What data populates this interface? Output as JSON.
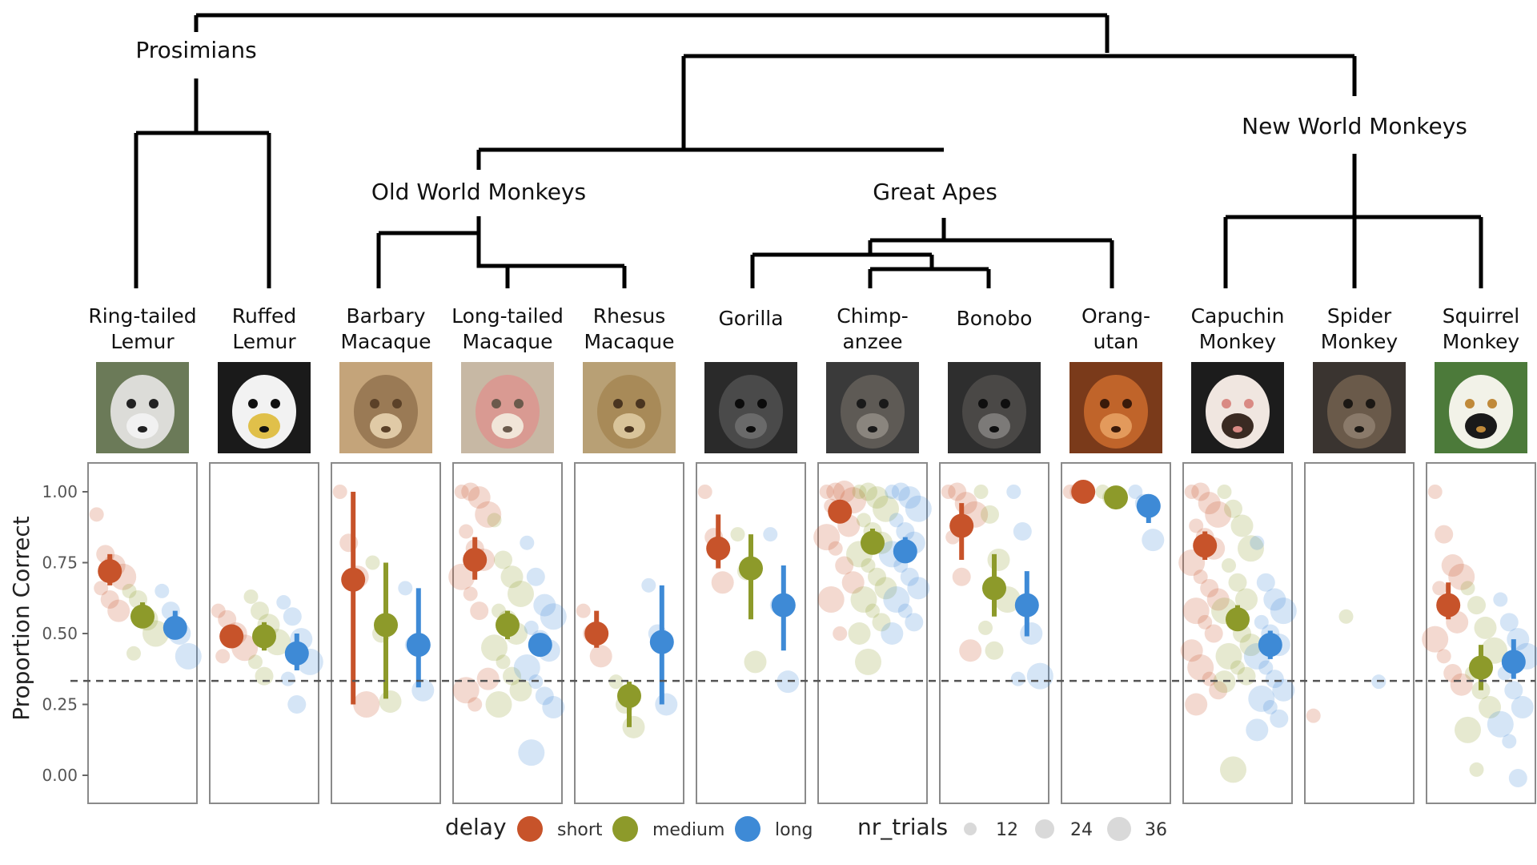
{
  "colors": {
    "short": "#c7532a",
    "medium": "#8d9a2a",
    "long": "#3e8ad6",
    "tree": "#000000"
  },
  "tree": {
    "clades": [
      {
        "id": "prosimians",
        "label": "Prosimians"
      },
      {
        "id": "old_world",
        "label": "Old World Monkeys"
      },
      {
        "id": "great_apes",
        "label": "Great Apes"
      },
      {
        "id": "new_world",
        "label": "New World Monkeys"
      }
    ]
  },
  "species": [
    {
      "id": "ringtailed",
      "lines": [
        "Ring-tailed",
        "Lemur"
      ],
      "photo_icon": "ring-tailed-lemur-photo"
    },
    {
      "id": "ruffed",
      "lines": [
        "Ruffed",
        "Lemur"
      ],
      "photo_icon": "ruffed-lemur-photo"
    },
    {
      "id": "barbary",
      "lines": [
        "Barbary",
        "Macaque"
      ],
      "photo_icon": "barbary-macaque-photo"
    },
    {
      "id": "longtailed",
      "lines": [
        "Long-tailed",
        "Macaque"
      ],
      "photo_icon": "long-tailed-macaque-photo"
    },
    {
      "id": "rhesus",
      "lines": [
        "Rhesus",
        "Macaque"
      ],
      "photo_icon": "rhesus-macaque-photo"
    },
    {
      "id": "gorilla",
      "lines": [
        "Gorilla"
      ],
      "photo_icon": "gorilla-photo"
    },
    {
      "id": "chimp",
      "lines": [
        "Chimp-",
        "anzee"
      ],
      "photo_icon": "chimpanzee-photo"
    },
    {
      "id": "bonobo",
      "lines": [
        "Bonobo"
      ],
      "photo_icon": "bonobo-photo"
    },
    {
      "id": "orangutan",
      "lines": [
        "Orang-",
        "utan"
      ],
      "photo_icon": "orangutan-photo"
    },
    {
      "id": "capuchin",
      "lines": [
        "Capuchin",
        "Monkey"
      ],
      "photo_icon": "capuchin-monkey-photo"
    },
    {
      "id": "spider",
      "lines": [
        "Spider",
        "Monkey"
      ],
      "photo_icon": "spider-monkey-photo"
    },
    {
      "id": "squirrel",
      "lines": [
        "Squirrel",
        "Monkey"
      ],
      "photo_icon": "squirrel-monkey-photo"
    }
  ],
  "chart_data": {
    "type": "scatter",
    "ylabel": "Proportion Correct",
    "ylim": [
      0,
      1
    ],
    "yticks": [
      "0.00",
      "0.25",
      "0.50",
      "0.75",
      "1.00"
    ],
    "chance_level": 0.333,
    "legend": {
      "placement": "bottom",
      "delay_title": "delay",
      "delay_items": [
        {
          "key": "short",
          "label": "short"
        },
        {
          "key": "medium",
          "label": "medium"
        },
        {
          "key": "long",
          "label": "long"
        }
      ],
      "size_title": "nr_trials",
      "size_items": [
        12,
        24,
        36
      ]
    },
    "panels": [
      {
        "species": "ringtailed",
        "summary": {
          "short": {
            "mean": 0.72,
            "lo": 0.67,
            "hi": 0.78
          },
          "medium": {
            "mean": 0.56,
            "lo": 0.52,
            "hi": 0.61
          },
          "long": {
            "mean": 0.52,
            "lo": 0.48,
            "hi": 0.58
          }
        },
        "points": {
          "short": [
            0.92,
            0.78,
            0.74,
            0.7,
            0.66,
            0.62,
            0.58
          ],
          "medium": [
            0.65,
            0.62,
            0.55,
            0.5,
            0.43
          ],
          "long": [
            0.65,
            0.58,
            0.5,
            0.42
          ]
        }
      },
      {
        "species": "ruffed",
        "summary": {
          "short": {
            "mean": 0.49,
            "lo": 0.46,
            "hi": 0.53
          },
          "medium": {
            "mean": 0.49,
            "lo": 0.44,
            "hi": 0.54
          },
          "long": {
            "mean": 0.43,
            "lo": 0.37,
            "hi": 0.5
          }
        },
        "points": {
          "short": [
            0.58,
            0.55,
            0.5,
            0.45,
            0.42
          ],
          "medium": [
            0.63,
            0.58,
            0.53,
            0.47,
            0.4,
            0.35
          ],
          "long": [
            0.61,
            0.56,
            0.48,
            0.4,
            0.34,
            0.25
          ]
        }
      },
      {
        "species": "barbary",
        "summary": {
          "short": {
            "mean": 0.69,
            "lo": 0.25,
            "hi": 1.0
          },
          "medium": {
            "mean": 0.53,
            "lo": 0.27,
            "hi": 0.75
          },
          "long": {
            "mean": 0.46,
            "lo": 0.31,
            "hi": 0.66
          }
        },
        "points": {
          "short": [
            1.0,
            0.82,
            0.7,
            0.25
          ],
          "medium": [
            0.75,
            0.5,
            0.26
          ],
          "long": [
            0.66,
            0.46,
            0.3
          ]
        }
      },
      {
        "species": "longtailed",
        "summary": {
          "short": {
            "mean": 0.76,
            "lo": 0.69,
            "hi": 0.84
          },
          "medium": {
            "mean": 0.53,
            "lo": 0.48,
            "hi": 0.58
          },
          "long": {
            "mean": 0.46,
            "lo": 0.42,
            "hi": 0.5
          }
        },
        "points": {
          "short": [
            1.0,
            1.0,
            0.98,
            0.92,
            0.86,
            0.8,
            0.76,
            0.7,
            0.64,
            0.58,
            0.34,
            0.3,
            0.25
          ],
          "medium": [
            0.9,
            0.76,
            0.7,
            0.64,
            0.58,
            0.55,
            0.5,
            0.45,
            0.4,
            0.35,
            0.3,
            0.25
          ],
          "long": [
            0.82,
            0.7,
            0.6,
            0.56,
            0.52,
            0.48,
            0.44,
            0.38,
            0.33,
            0.28,
            0.24,
            0.08
          ]
        }
      },
      {
        "species": "rhesus",
        "summary": {
          "short": {
            "mean": 0.5,
            "lo": 0.45,
            "hi": 0.58
          },
          "medium": {
            "mean": 0.28,
            "lo": 0.17,
            "hi": 0.33
          },
          "long": {
            "mean": 0.47,
            "lo": 0.25,
            "hi": 0.67
          }
        },
        "points": {
          "short": [
            0.58,
            0.5,
            0.42
          ],
          "medium": [
            0.33,
            0.25,
            0.17
          ],
          "long": [
            0.67,
            0.5,
            0.25
          ]
        }
      },
      {
        "species": "gorilla",
        "summary": {
          "short": {
            "mean": 0.8,
            "lo": 0.73,
            "hi": 0.92
          },
          "medium": {
            "mean": 0.73,
            "lo": 0.55,
            "hi": 0.85
          },
          "long": {
            "mean": 0.6,
            "lo": 0.44,
            "hi": 0.74
          }
        },
        "points": {
          "short": [
            1.0,
            0.84,
            0.68
          ],
          "medium": [
            0.85,
            0.72,
            0.4
          ],
          "long": [
            0.85,
            0.6,
            0.33
          ]
        }
      },
      {
        "species": "chimp",
        "summary": {
          "short": {
            "mean": 0.93,
            "lo": 0.9,
            "hi": 0.97
          },
          "medium": {
            "mean": 0.82,
            "lo": 0.78,
            "hi": 0.87
          },
          "long": {
            "mean": 0.79,
            "lo": 0.75,
            "hi": 0.84
          }
        },
        "points": {
          "short": [
            1.0,
            1.0,
            1.0,
            0.97,
            0.95,
            0.92,
            0.88,
            0.84,
            0.8,
            0.74,
            0.68,
            0.62,
            0.5
          ],
          "medium": [
            1.0,
            1.0,
            0.98,
            0.94,
            0.9,
            0.86,
            0.82,
            0.78,
            0.74,
            0.7,
            0.66,
            0.62,
            0.58,
            0.54,
            0.5,
            0.4
          ],
          "long": [
            1.0,
            1.0,
            0.98,
            0.94,
            0.9,
            0.86,
            0.82,
            0.78,
            0.74,
            0.7,
            0.66,
            0.62,
            0.58,
            0.54,
            0.5
          ]
        }
      },
      {
        "species": "bonobo",
        "summary": {
          "short": {
            "mean": 0.88,
            "lo": 0.76,
            "hi": 0.96
          },
          "medium": {
            "mean": 0.66,
            "lo": 0.56,
            "hi": 0.78
          },
          "long": {
            "mean": 0.6,
            "lo": 0.49,
            "hi": 0.72
          }
        },
        "points": {
          "short": [
            1.0,
            1.0,
            0.96,
            0.92,
            0.84,
            0.7,
            0.44
          ],
          "medium": [
            1.0,
            0.92,
            0.76,
            0.62,
            0.52,
            0.44
          ],
          "long": [
            1.0,
            0.86,
            0.5,
            0.35,
            0.34
          ]
        }
      },
      {
        "species": "orangutan",
        "summary": {
          "short": {
            "mean": 1.0,
            "lo": 1.0,
            "hi": 1.0
          },
          "medium": {
            "mean": 0.98,
            "lo": 0.96,
            "hi": 1.0
          },
          "long": {
            "mean": 0.95,
            "lo": 0.89,
            "hi": 0.99
          }
        },
        "points": {
          "short": [
            1.0,
            1.0
          ],
          "medium": [
            1.0,
            0.98
          ],
          "long": [
            1.0,
            0.96,
            0.83
          ]
        }
      },
      {
        "species": "capuchin",
        "summary": {
          "short": {
            "mean": 0.81,
            "lo": 0.76,
            "hi": 0.86
          },
          "medium": {
            "mean": 0.55,
            "lo": 0.51,
            "hi": 0.6
          },
          "long": {
            "mean": 0.46,
            "lo": 0.41,
            "hi": 0.51
          }
        },
        "points": {
          "short": [
            1.0,
            1.0,
            0.96,
            0.92,
            0.88,
            0.84,
            0.8,
            0.75,
            0.7,
            0.66,
            0.62,
            0.58,
            0.54,
            0.5,
            0.44,
            0.38,
            0.34,
            0.3,
            0.25
          ],
          "medium": [
            1.0,
            0.94,
            0.88,
            0.8,
            0.74,
            0.68,
            0.62,
            0.58,
            0.54,
            0.5,
            0.46,
            0.42,
            0.38,
            0.35,
            0.33,
            0.02
          ],
          "long": [
            0.82,
            0.68,
            0.62,
            0.58,
            0.54,
            0.5,
            0.46,
            0.42,
            0.38,
            0.34,
            0.3,
            0.27,
            0.24,
            0.2,
            0.16
          ]
        }
      },
      {
        "species": "spider",
        "summary": {},
        "points": {
          "short": [
            0.21
          ],
          "medium": [
            0.56
          ],
          "long": [
            0.33
          ]
        }
      },
      {
        "species": "squirrel",
        "summary": {
          "short": {
            "mean": 0.6,
            "lo": 0.55,
            "hi": 0.68
          },
          "medium": {
            "mean": 0.38,
            "lo": 0.3,
            "hi": 0.46
          },
          "long": {
            "mean": 0.4,
            "lo": 0.34,
            "hi": 0.48
          }
        },
        "points": {
          "short": [
            1.0,
            0.85,
            0.74,
            0.7,
            0.66,
            0.6,
            0.54,
            0.48,
            0.42,
            0.36,
            0.32
          ],
          "medium": [
            0.66,
            0.6,
            0.52,
            0.44,
            0.36,
            0.3,
            0.24,
            0.16,
            0.02
          ],
          "long": [
            0.62,
            0.54,
            0.48,
            0.42,
            0.36,
            0.3,
            0.24,
            0.18,
            0.12,
            -0.01
          ]
        }
      }
    ]
  }
}
